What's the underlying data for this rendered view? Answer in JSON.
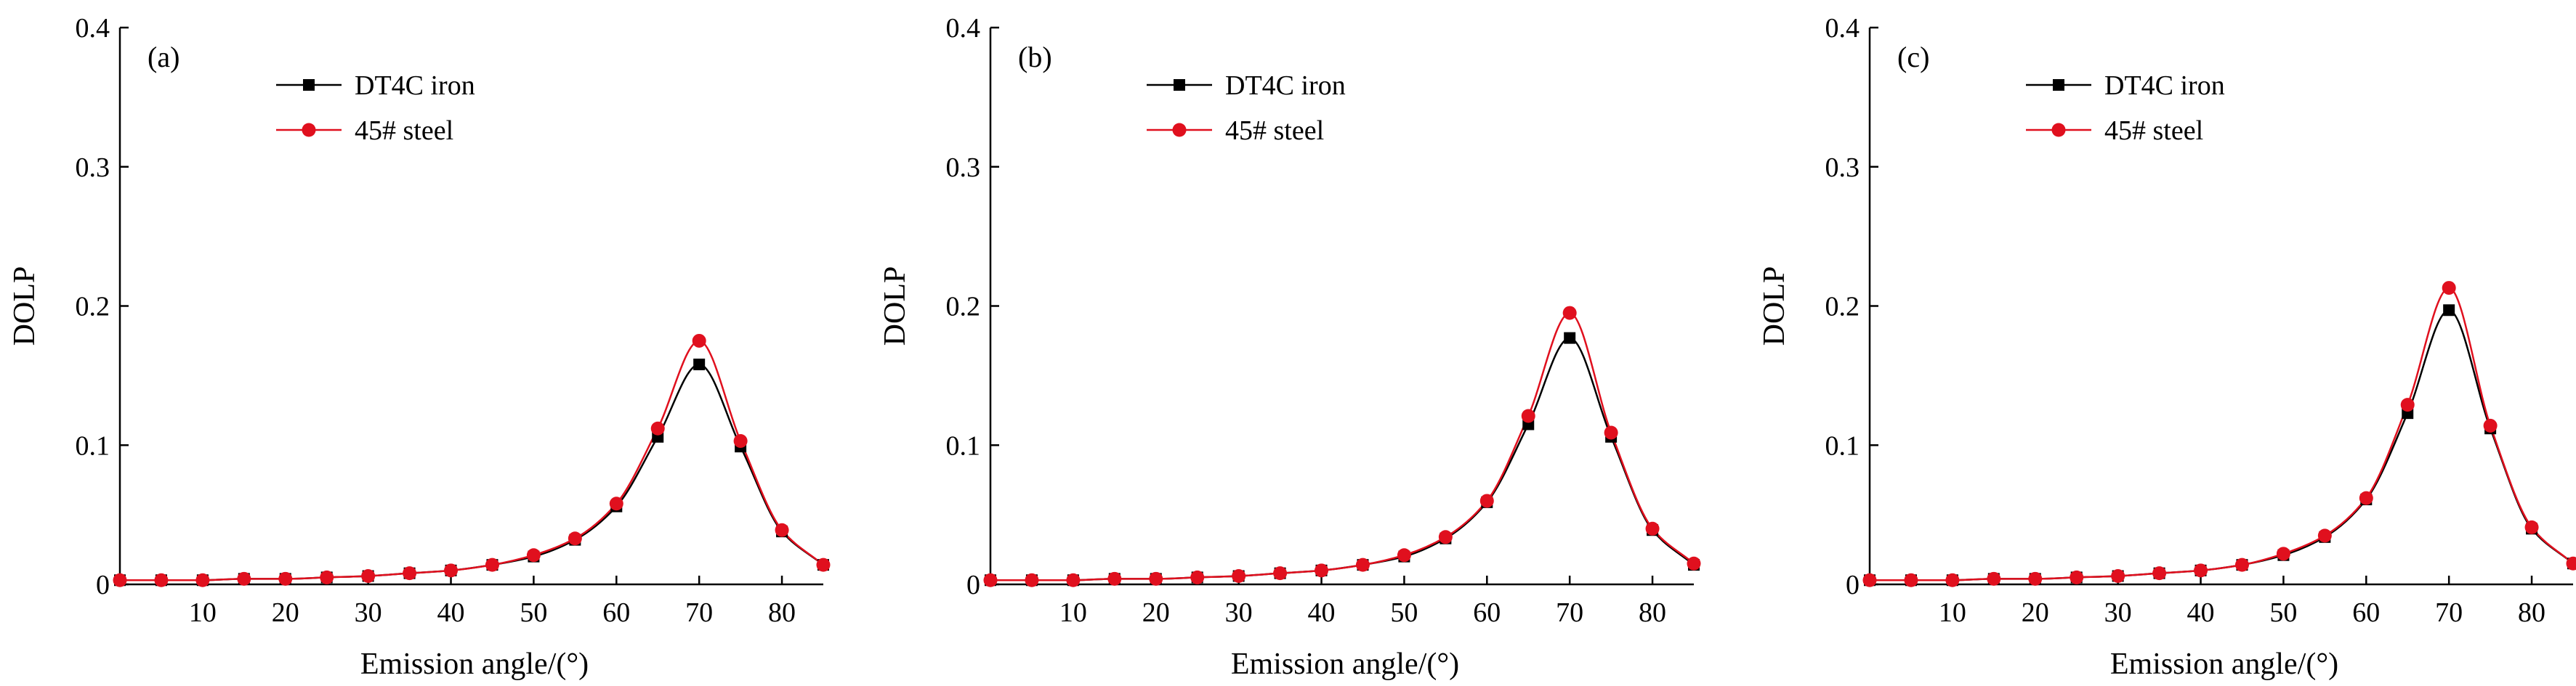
{
  "chart_data": [
    {
      "type": "line",
      "panel_label": "(a)",
      "xlabel": "Emission angle/(°)",
      "ylabel": "DOLP",
      "xlim": [
        0,
        85
      ],
      "ylim": [
        0,
        0.4
      ],
      "xticks": [
        10,
        20,
        30,
        40,
        50,
        60,
        70,
        80
      ],
      "yticks": [
        0,
        0.1,
        0.2,
        0.3,
        0.4
      ],
      "ytick_labels": [
        "0",
        "0.1",
        "0.2",
        "0.3",
        "0.4"
      ],
      "grid": false,
      "legend_position": "top-left",
      "x": [
        0,
        5,
        10,
        15,
        20,
        25,
        30,
        35,
        40,
        45,
        50,
        55,
        60,
        65,
        70,
        75,
        80,
        85
      ],
      "series": [
        {
          "name": "DT4C iron",
          "color": "#000000",
          "marker": "square",
          "values": [
            0.003,
            0.003,
            0.003,
            0.004,
            0.004,
            0.005,
            0.006,
            0.008,
            0.01,
            0.014,
            0.02,
            0.032,
            0.056,
            0.106,
            0.158,
            0.099,
            0.038,
            0.014
          ]
        },
        {
          "name": "45# steel",
          "color": "#e0101e",
          "marker": "circle",
          "values": [
            0.003,
            0.003,
            0.003,
            0.004,
            0.004,
            0.005,
            0.006,
            0.008,
            0.01,
            0.014,
            0.021,
            0.033,
            0.058,
            0.112,
            0.175,
            0.103,
            0.039,
            0.014
          ]
        }
      ]
    },
    {
      "type": "line",
      "panel_label": "(b)",
      "xlabel": "Emission angle/(°)",
      "ylabel": "DOLP",
      "xlim": [
        0,
        85
      ],
      "ylim": [
        0,
        0.4
      ],
      "xticks": [
        10,
        20,
        30,
        40,
        50,
        60,
        70,
        80
      ],
      "yticks": [
        0,
        0.1,
        0.2,
        0.3,
        0.4
      ],
      "ytick_labels": [
        "0",
        "0.1",
        "0.2",
        "0.3",
        "0.4"
      ],
      "grid": false,
      "legend_position": "top-left",
      "x": [
        0,
        5,
        10,
        15,
        20,
        25,
        30,
        35,
        40,
        45,
        50,
        55,
        60,
        65,
        70,
        75,
        80,
        85
      ],
      "series": [
        {
          "name": "DT4C iron",
          "color": "#000000",
          "marker": "square",
          "values": [
            0.003,
            0.003,
            0.003,
            0.004,
            0.004,
            0.005,
            0.006,
            0.008,
            0.01,
            0.014,
            0.02,
            0.033,
            0.059,
            0.115,
            0.177,
            0.106,
            0.039,
            0.014
          ]
        },
        {
          "name": "45# steel",
          "color": "#e0101e",
          "marker": "circle",
          "values": [
            0.003,
            0.003,
            0.003,
            0.004,
            0.004,
            0.005,
            0.006,
            0.008,
            0.01,
            0.014,
            0.021,
            0.034,
            0.06,
            0.121,
            0.195,
            0.109,
            0.04,
            0.015
          ]
        }
      ]
    },
    {
      "type": "line",
      "panel_label": "(c)",
      "xlabel": "Emission angle/(°)",
      "ylabel": "DOLP",
      "xlim": [
        0,
        85
      ],
      "ylim": [
        0,
        0.4
      ],
      "xticks": [
        10,
        20,
        30,
        40,
        50,
        60,
        70,
        80
      ],
      "yticks": [
        0,
        0.1,
        0.2,
        0.3,
        0.4
      ],
      "ytick_labels": [
        "0",
        "0.1",
        "0.2",
        "0.3",
        "0.4"
      ],
      "grid": false,
      "legend_position": "top-left",
      "x": [
        0,
        5,
        10,
        15,
        20,
        25,
        30,
        35,
        40,
        45,
        50,
        55,
        60,
        65,
        70,
        75,
        80,
        85
      ],
      "series": [
        {
          "name": "DT4C iron",
          "color": "#000000",
          "marker": "square",
          "values": [
            0.003,
            0.003,
            0.003,
            0.004,
            0.004,
            0.005,
            0.006,
            0.008,
            0.01,
            0.014,
            0.021,
            0.034,
            0.061,
            0.123,
            0.197,
            0.112,
            0.04,
            0.015
          ]
        },
        {
          "name": "45# steel",
          "color": "#e0101e",
          "marker": "circle",
          "values": [
            0.003,
            0.003,
            0.003,
            0.004,
            0.004,
            0.005,
            0.006,
            0.008,
            0.01,
            0.014,
            0.022,
            0.035,
            0.062,
            0.129,
            0.213,
            0.114,
            0.041,
            0.015
          ]
        }
      ]
    }
  ]
}
